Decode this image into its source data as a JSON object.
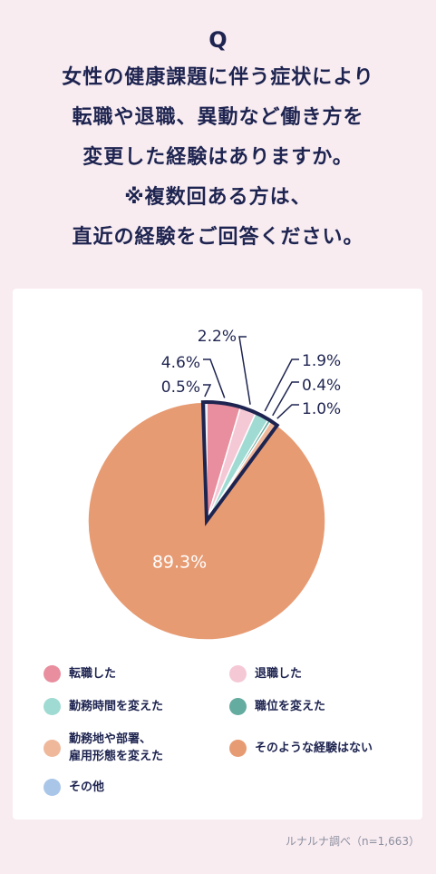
{
  "question": {
    "mark": "Q",
    "lines": [
      "女性の健康課題に伴う症状により",
      "転職や退職、異動など働き方を",
      "変更した経験はありますか。",
      "※複数回ある方は、",
      "直近の経験をご回答ください。"
    ]
  },
  "chart_data": {
    "type": "pie",
    "title": "",
    "slices": [
      {
        "label": "転職した",
        "value": 4.6,
        "display": "4.6%",
        "color": "#e88e9e"
      },
      {
        "label": "退職した",
        "value": 2.2,
        "display": "2.2%",
        "color": "#f5c8d6"
      },
      {
        "label": "勤務時間を変えた",
        "value": 1.9,
        "display": "1.9%",
        "color": "#9fdbd2"
      },
      {
        "label": "職位を変えた",
        "value": 0.4,
        "display": "0.4%",
        "color": "#64aba0"
      },
      {
        "label": "勤務地や部署、\n雇用形態を変えた",
        "value": 1.0,
        "display": "1.0%",
        "color": "#efb89b"
      },
      {
        "label": "そのような経験はない",
        "value": 89.3,
        "display": "89.3%",
        "color": "#e79b73"
      },
      {
        "label": "その他",
        "value": 0.5,
        "display": "0.5%",
        "color": "#a9c6e8"
      }
    ]
  },
  "legend": {
    "items": [
      {
        "label": "転職した",
        "color": "#e88e9e"
      },
      {
        "label": "退職した",
        "color": "#f5c8d6"
      },
      {
        "label": "勤務時間を変えた",
        "color": "#9fdbd2"
      },
      {
        "label": "職位を変えた",
        "color": "#64aba0"
      },
      {
        "label": "勤務地や部署、\n雇用形態を変えた",
        "color": "#efb89b"
      },
      {
        "label": "そのような経験はない",
        "color": "#e79b73"
      },
      {
        "label": "その他",
        "color": "#a9c6e8"
      }
    ]
  },
  "source": "ルナルナ調べ（n=1,663）"
}
